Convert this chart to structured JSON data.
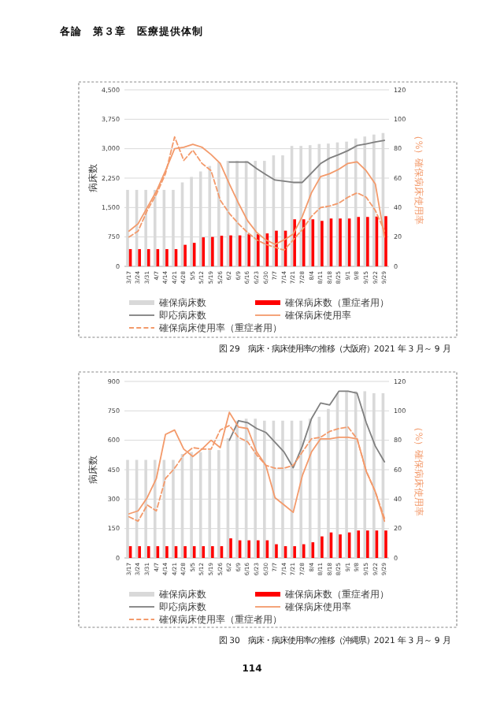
{
  "chart_data": [
    {
      "type": "bar",
      "title": "図 29　病床・病床使用率の推移（大阪府）2021 年 3 月～ 9 月",
      "ylabel": "病床数",
      "y2label": "（%）確保病床使用率",
      "annotations": [
        "各論　第３章　医療提供体制"
      ],
      "categories": [
        "3/17",
        "3/24",
        "3/31",
        "4/7",
        "4/14",
        "4/21",
        "4/28",
        "5/5",
        "5/12",
        "5/19",
        "5/26",
        "6/2",
        "6/9",
        "6/16",
        "6/23",
        "6/30",
        "7/7",
        "7/14",
        "7/21",
        "7/28",
        "8/4",
        "8/11",
        "8/18",
        "8/25",
        "9/1",
        "9/8",
        "9/15",
        "9/22",
        "9/29"
      ],
      "series": [
        {
          "name": "確保病床数",
          "color": "#d9d9d9",
          "values": [
            1950,
            1950,
            1950,
            1950,
            1950,
            1950,
            2140,
            2280,
            2420,
            2560,
            2650,
            2690,
            2690,
            2690,
            2690,
            2690,
            2830,
            2830,
            3070,
            3070,
            3090,
            3120,
            3130,
            3160,
            3180,
            3260,
            3310,
            3360,
            3400
          ]
        },
        {
          "name": "確保病床数（重症者用）",
          "color": "#ff0000",
          "values": [
            440,
            440,
            440,
            440,
            440,
            440,
            550,
            600,
            740,
            750,
            780,
            790,
            790,
            820,
            820,
            840,
            910,
            910,
            1200,
            1200,
            1200,
            1160,
            1220,
            1220,
            1220,
            1260,
            1260,
            1270,
            1280
          ]
        },
        {
          "name": "即応病床数",
          "type": "line",
          "color": "#7f7f7f",
          "values": [
            null,
            null,
            null,
            null,
            null,
            null,
            null,
            null,
            null,
            null,
            null,
            2660,
            2660,
            2660,
            2490,
            2340,
            2200,
            2170,
            2140,
            2140,
            2380,
            2620,
            2760,
            2850,
            2950,
            3080,
            3120,
            3170,
            3210
          ]
        },
        {
          "name": "確保病床使用率",
          "type": "line",
          "axis": "y2",
          "color": "#f39a6b",
          "values": [
            24,
            29,
            40,
            51,
            65,
            80,
            81,
            83,
            81,
            76,
            70,
            56,
            43,
            31,
            23,
            18,
            15,
            18,
            22,
            34,
            50,
            61,
            63,
            66,
            70,
            71,
            65,
            56,
            20
          ]
        },
        {
          "name": "確保病床使用率（重症者用）",
          "type": "line",
          "axis": "y2",
          "line_style": "dashed",
          "color": "#f39a6b",
          "values": [
            20,
            24,
            38,
            49,
            63,
            88,
            72,
            79,
            70,
            65,
            45,
            36,
            29,
            23,
            18,
            15,
            13,
            11,
            18,
            25,
            34,
            40,
            41,
            43,
            47,
            50,
            47,
            38,
            24
          ]
        }
      ],
      "ylim": [
        0,
        4500
      ],
      "yticks": [
        0,
        {
          "value": 750,
          "label": "750"
        },
        {
          "value": 1500,
          "label": "1,500"
        },
        {
          "value": 2250,
          "label": "2,250"
        },
        {
          "value": 3000,
          "label": "3,000"
        },
        {
          "value": 3750,
          "label": "3,750"
        },
        {
          "value": 4500,
          "label": "4,500"
        }
      ],
      "y2lim": [
        0,
        120
      ],
      "y2ticks": [
        0,
        20,
        40,
        60,
        80,
        100,
        120
      ],
      "grid": "y",
      "legend": "bottom"
    },
    {
      "type": "bar",
      "title": "図 30　病床・病床使用率の推移（沖縄県）2021 年 3 月～ 9 月",
      "ylabel": "病床数",
      "y2label": "（%）確保病床使用率",
      "annotations": [
        "114"
      ],
      "categories": [
        "3/17",
        "3/24",
        "3/31",
        "4/7",
        "4/14",
        "4/21",
        "4/28",
        "5/5",
        "5/12",
        "5/19",
        "5/26",
        "6/2",
        "6/9",
        "6/16",
        "6/23",
        "6/30",
        "7/7",
        "7/14",
        "7/21",
        "7/28",
        "8/4",
        "8/11",
        "8/18",
        "8/25",
        "9/1",
        "9/8",
        "9/15",
        "9/22",
        "9/29"
      ],
      "series": [
        {
          "name": "確保病床数",
          "color": "#d9d9d9",
          "values": [
            500,
            500,
            500,
            500,
            500,
            500,
            530,
            540,
            540,
            550,
            550,
            610,
            700,
            710,
            710,
            700,
            700,
            700,
            700,
            700,
            710,
            720,
            760,
            840,
            850,
            850,
            850,
            840,
            840
          ]
        },
        {
          "name": "確保病床数（重症者用）",
          "color": "#ff0000",
          "values": [
            60,
            60,
            60,
            60,
            60,
            60,
            60,
            60,
            60,
            60,
            60,
            100,
            90,
            90,
            90,
            90,
            70,
            60,
            60,
            70,
            80,
            110,
            130,
            120,
            130,
            140,
            140,
            140,
            140
          ]
        },
        {
          "name": "即応病床数",
          "type": "line",
          "color": "#7f7f7f",
          "values": [
            null,
            null,
            null,
            null,
            null,
            null,
            null,
            null,
            null,
            null,
            null,
            600,
            700,
            690,
            660,
            640,
            590,
            540,
            460,
            570,
            710,
            790,
            780,
            850,
            850,
            840,
            690,
            570,
            490
          ]
        },
        {
          "name": "確保病床使用率",
          "type": "line",
          "axis": "y2",
          "color": "#f39a6b",
          "values": [
            30,
            32,
            41,
            54,
            84,
            87,
            74,
            69,
            74,
            80,
            75,
            99,
            89,
            88,
            72,
            63,
            41,
            36,
            31,
            56,
            72,
            81,
            81,
            82,
            82,
            81,
            59,
            45,
            25
          ]
        },
        {
          "name": "確保病床使用率（重症者用）",
          "type": "line",
          "axis": "y2",
          "line_style": "dashed",
          "color": "#f39a6b",
          "values": [
            28,
            25,
            36,
            32,
            54,
            61,
            70,
            75,
            74,
            74,
            87,
            90,
            82,
            79,
            70,
            63,
            61,
            61,
            63,
            72,
            81,
            82,
            86,
            88,
            89,
            81,
            59,
            45,
            27
          ]
        }
      ],
      "ylim": [
        0,
        900
      ],
      "yticks": [
        0,
        150,
        300,
        450,
        600,
        750,
        900
      ],
      "y2lim": [
        0,
        120
      ],
      "y2ticks": [
        0,
        20,
        40,
        60,
        80,
        100,
        120
      ],
      "grid": "y",
      "legend": "bottom"
    }
  ]
}
